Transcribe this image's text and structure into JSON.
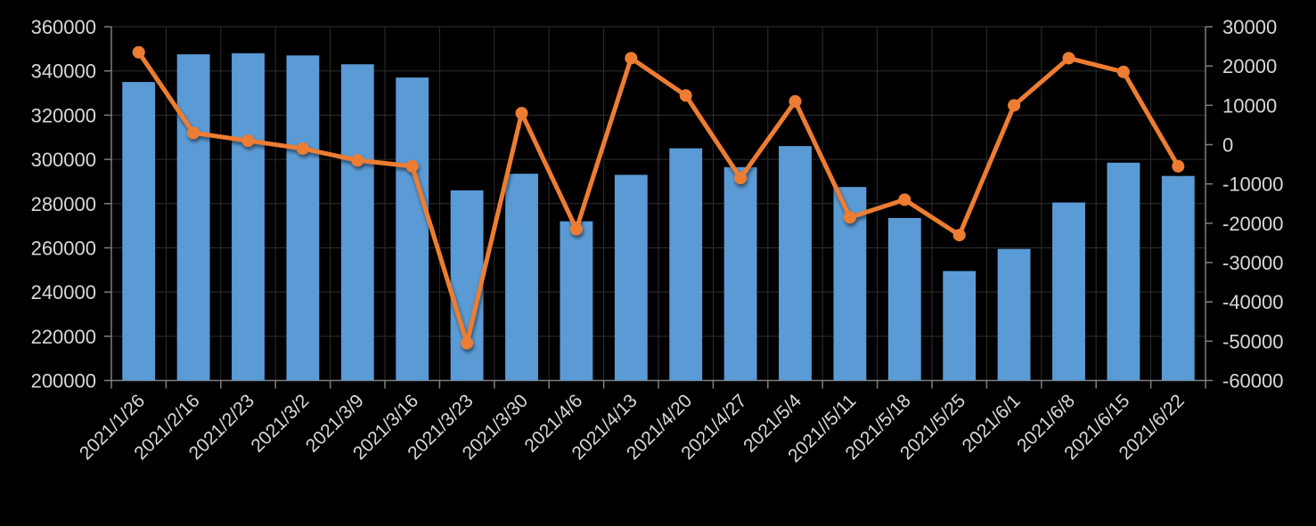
{
  "chart_data": {
    "type": "combo",
    "title": "",
    "categories": [
      "2021/1/26",
      "2021/2/16",
      "2021/2/23",
      "2021/3/2",
      "2021/3/9",
      "2021/3/16",
      "2021/3/23",
      "2021/3/30",
      "2021/4/6",
      "2021/4/13",
      "2021/4/20",
      "2021/4/27",
      "2021/5/4",
      "2021//5/11",
      "2021/5/18",
      "2021/5/25",
      "2021/6/1",
      "2021/6/8",
      "2021/6/15",
      "2021/6/22"
    ],
    "series": [
      {
        "name": "bars",
        "type": "bar",
        "axis": "left",
        "color": "#5B9BD5",
        "values": [
          335000,
          347500,
          348000,
          347000,
          343000,
          337000,
          286000,
          293500,
          272000,
          293000,
          305000,
          296500,
          306000,
          287500,
          273500,
          249500,
          259500,
          280500,
          298500,
          292500
        ]
      },
      {
        "name": "line",
        "type": "line",
        "axis": "right",
        "color": "#ED7D31",
        "values": [
          23500,
          3000,
          1000,
          -1000,
          -4000,
          -5500,
          -50500,
          8000,
          -21500,
          22000,
          12500,
          -8500,
          11000,
          -18500,
          -14000,
          -23000,
          10000,
          22000,
          18500,
          -5500
        ]
      }
    ],
    "left_axis": {
      "min": 200000,
      "max": 360000,
      "step": 20000,
      "tick_labels": [
        "360000",
        "340000",
        "320000",
        "300000",
        "280000",
        "260000",
        "240000",
        "220000",
        "200000"
      ]
    },
    "right_axis": {
      "min": -60000,
      "max": 30000,
      "step": 10000,
      "tick_labels": [
        "30000",
        "20000",
        "10000",
        "0",
        "-10000",
        "-20000",
        "-30000",
        "-40000",
        "-50000",
        "-60000"
      ]
    },
    "legend": "none",
    "grid": true,
    "background_color": "#000000",
    "gridline_color": "#2F2F2F",
    "axis_line_color": "#7F7F7F",
    "label_color": "#D9D9D9"
  }
}
